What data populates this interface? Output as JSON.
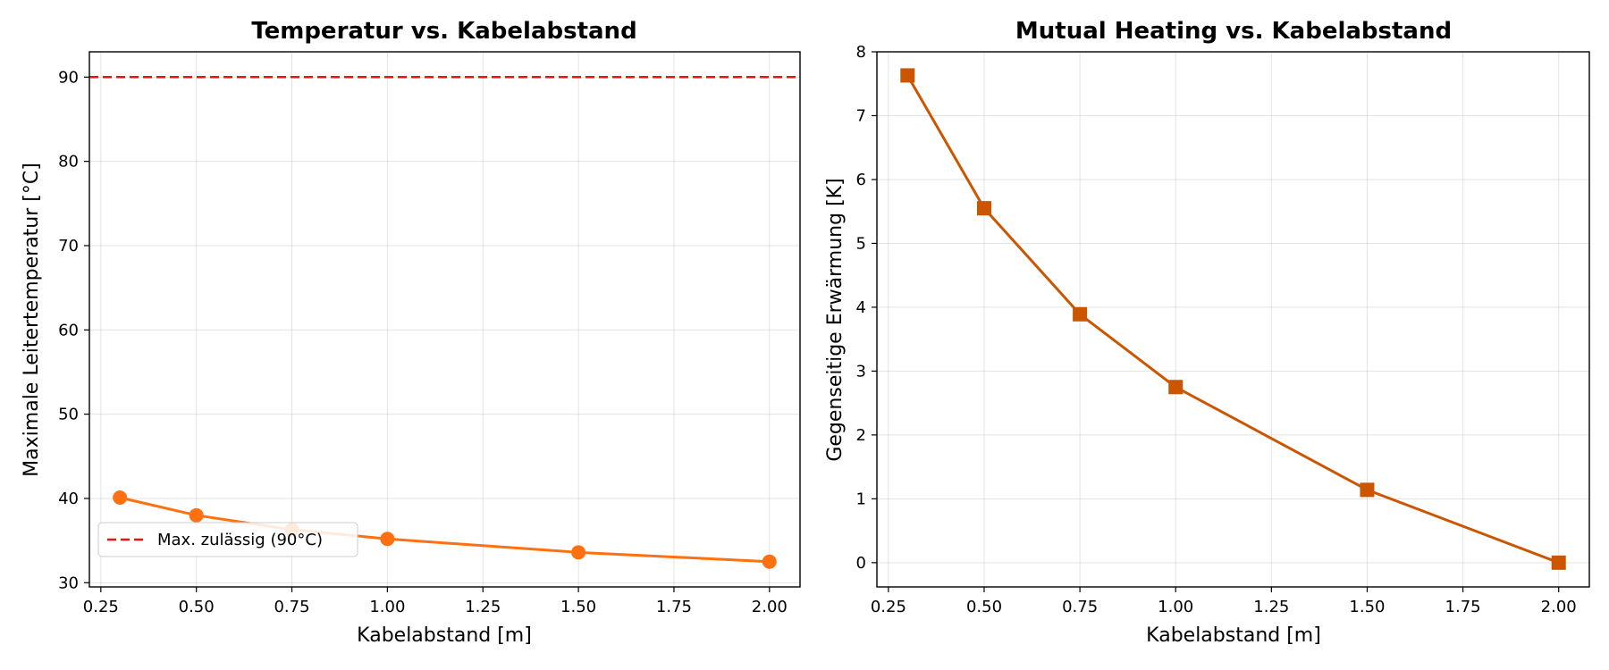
{
  "chart_data": [
    {
      "type": "line",
      "title": "Temperatur vs. Kabelabstand",
      "xlabel": "Kabelabstand [m]",
      "ylabel": "Maximale Leitertemperatur [°C]",
      "xlim": [
        0.22,
        2.08
      ],
      "ylim": [
        29.5,
        93
      ],
      "xticks": [
        0.25,
        0.5,
        0.75,
        1.0,
        1.25,
        1.5,
        1.75,
        2.0
      ],
      "xtick_labels": [
        "0.25",
        "0.50",
        "0.75",
        "1.00",
        "1.25",
        "1.50",
        "1.75",
        "2.00"
      ],
      "yticks": [
        30,
        40,
        50,
        60,
        70,
        80,
        90
      ],
      "ytick_labels": [
        "30",
        "40",
        "50",
        "60",
        "70",
        "80",
        "90"
      ],
      "grid": true,
      "legend": "lower-left",
      "series": [
        {
          "name": "",
          "color": "#ff7010",
          "marker": "circle",
          "x": [
            0.3,
            0.5,
            0.75,
            1.0,
            1.5,
            2.0
          ],
          "values": [
            40.1,
            38.0,
            36.3,
            35.2,
            33.6,
            32.5
          ]
        }
      ],
      "reference_lines": [
        {
          "name": "Max. zulässig (90°C)",
          "y": 90,
          "color": "#ee1111",
          "style": "dashed"
        }
      ]
    },
    {
      "type": "line",
      "title": "Mutual Heating vs. Kabelabstand",
      "xlabel": "Kabelabstand [m]",
      "ylabel": "Gegenseitige Erwärmung [K]",
      "xlim": [
        0.22,
        2.08
      ],
      "ylim": [
        -0.38,
        8.0
      ],
      "xticks": [
        0.25,
        0.5,
        0.75,
        1.0,
        1.25,
        1.5,
        1.75,
        2.0
      ],
      "xtick_labels": [
        "0.25",
        "0.50",
        "0.75",
        "1.00",
        "1.25",
        "1.50",
        "1.75",
        "2.00"
      ],
      "yticks": [
        0,
        1,
        2,
        3,
        4,
        5,
        6,
        7,
        8
      ],
      "ytick_labels": [
        "0",
        "1",
        "2",
        "3",
        "4",
        "5",
        "6",
        "7",
        "8"
      ],
      "grid": true,
      "series": [
        {
          "name": "",
          "color": "#cc5500",
          "marker": "square",
          "x": [
            0.3,
            0.5,
            0.75,
            1.0,
            1.5,
            2.0
          ],
          "values": [
            7.63,
            5.55,
            3.89,
            2.75,
            1.14,
            0.0
          ]
        }
      ]
    }
  ]
}
